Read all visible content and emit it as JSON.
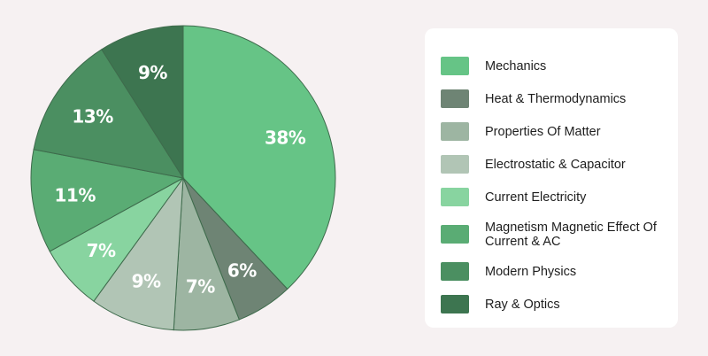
{
  "chart_data": {
    "type": "pie",
    "slices": [
      {
        "name": "Mechanics",
        "value": 38,
        "label": "38%",
        "color": "#66c486"
      },
      {
        "name": "Heat & Thermodynamics",
        "value": 6,
        "label": "6%",
        "color": "#6e8474"
      },
      {
        "name": "Properties Of Matter",
        "value": 7,
        "label": "7%",
        "color": "#9db5a2"
      },
      {
        "name": "Electrostatic & Capacitor",
        "value": 9,
        "label": "9%",
        "color": "#b1c5b5"
      },
      {
        "name": "Current Electricity",
        "value": 7,
        "label": "7%",
        "color": "#88d4a0"
      },
      {
        "name": "Magnetism Magnetic Effect Of Current & AC",
        "value": 11,
        "label": "11%",
        "color": "#5aac74"
      },
      {
        "name": "Modern Physics",
        "value": 13,
        "label": "13%",
        "color": "#4b8f61"
      },
      {
        "name": "Ray & Optics",
        "value": 9,
        "label": "9%",
        "color": "#3d7550"
      }
    ],
    "legend": {
      "placement": "right",
      "entries": [
        {
          "label": "Mechanics",
          "color": "#66c486"
        },
        {
          "label": "Heat & Thermodynamics",
          "color": "#6e8474"
        },
        {
          "label": "Properties Of Matter",
          "color": "#9db5a2"
        },
        {
          "label": "Electrostatic & Capacitor",
          "color": "#b1c5b5"
        },
        {
          "label": "Current Electricity",
          "color": "#88d4a0"
        },
        {
          "label": "Magnetism Magnetic Effect Of Current & AC",
          "color": "#5aac74"
        },
        {
          "label": "Modern Physics",
          "color": "#4b8f61"
        },
        {
          "label": "Ray & Optics",
          "color": "#3d7550"
        }
      ]
    }
  }
}
